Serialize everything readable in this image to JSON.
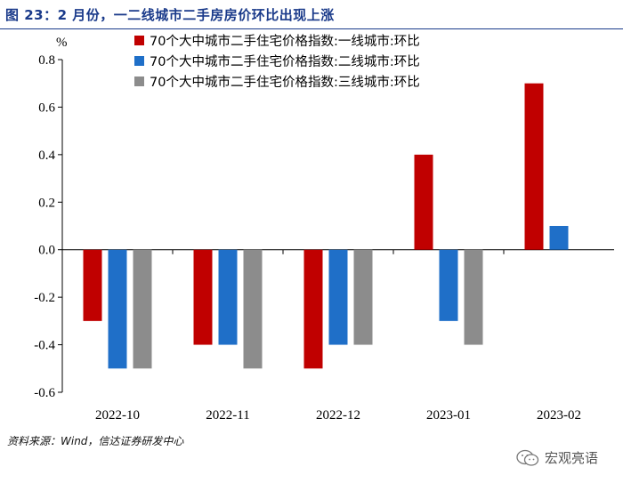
{
  "figure": {
    "title": "图 23：2 月份，一二线城市二手房房价环比出现上涨",
    "source": "资料来源：Wind，信达证券研发中心",
    "watermark": "宏观亮语"
  },
  "chart_data": {
    "type": "bar",
    "title": "图 23：2 月份，一二线城市二手房房价环比出现上涨",
    "ylabel": "%",
    "xlabel": "",
    "ylim": [
      -0.6,
      0.8
    ],
    "yticks": [
      -0.6,
      -0.4,
      -0.2,
      0.0,
      0.2,
      0.4,
      0.6,
      0.8
    ],
    "ytick_labels": [
      "-0.6",
      "-0.4",
      "-0.2",
      "0.0",
      "0.2",
      "0.4",
      "0.6",
      "0.8"
    ],
    "categories": [
      "2022-10",
      "2022-11",
      "2022-12",
      "2023-01",
      "2023-02"
    ],
    "legend_position": "top-center",
    "series": [
      {
        "name": "70个大中城市二手住宅价格指数:一线城市:环比",
        "color": "#c00000",
        "values": [
          -0.3,
          -0.4,
          -0.5,
          0.4,
          0.7
        ]
      },
      {
        "name": "70个大中城市二手住宅价格指数:二线城市:环比",
        "color": "#1f6fc8",
        "values": [
          -0.5,
          -0.4,
          -0.4,
          -0.3,
          0.1
        ]
      },
      {
        "name": "70个大中城市二手住宅价格指数:三线城市:环比",
        "color": "#8c8c8c",
        "values": [
          -0.5,
          -0.5,
          -0.4,
          -0.4,
          0.0
        ]
      }
    ]
  }
}
